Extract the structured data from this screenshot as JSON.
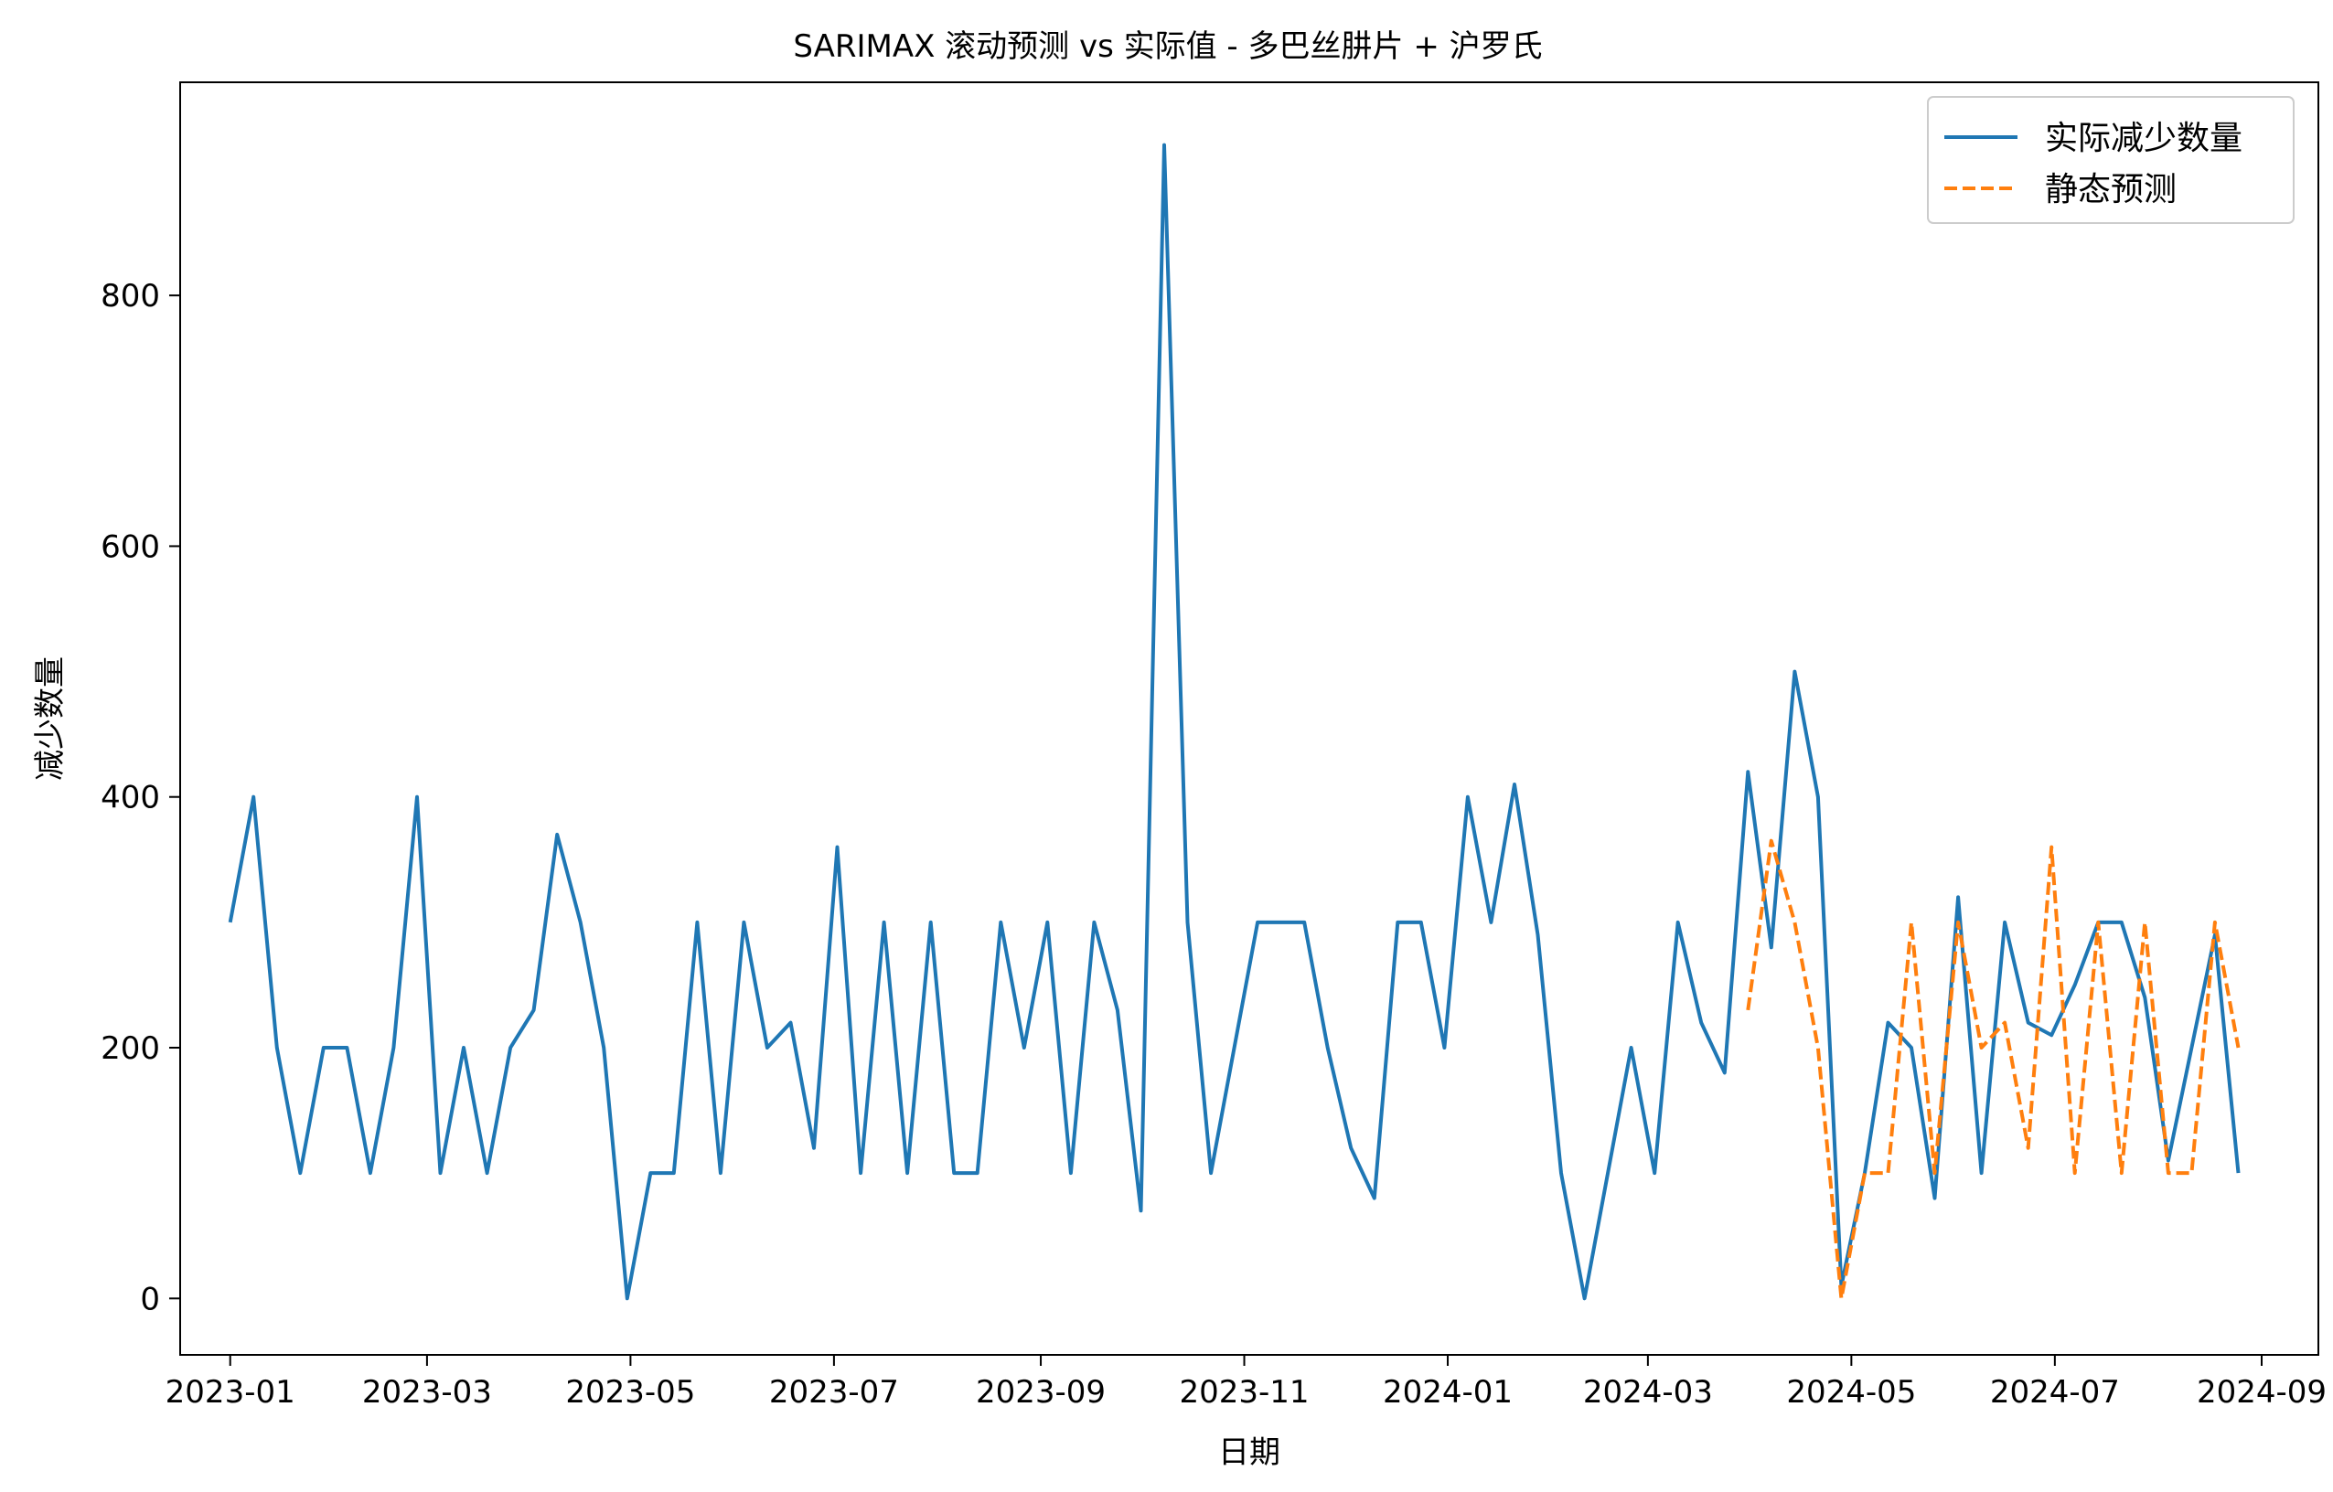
{
  "chart_data": {
    "type": "line",
    "title": "SARIMAX 滚动预测 vs 实际值 - 多巴丝肼片 + 沪罗氏",
    "xlabel": "日期",
    "ylabel": "减少数量",
    "xlim": [
      "2022-12-17",
      "2024-09-18"
    ],
    "ylim": [
      -45,
      970
    ],
    "x_ticks": [
      "2023-01",
      "2023-03",
      "2023-05",
      "2023-07",
      "2023-09",
      "2023-11",
      "2024-01",
      "2024-03",
      "2024-05",
      "2024-07",
      "2024-09"
    ],
    "y_ticks": [
      0,
      200,
      400,
      600,
      800
    ],
    "legend_position": "top-right",
    "series": [
      {
        "name": "实际减少数量",
        "color": "#1f77b4",
        "style": "solid",
        "start": "2023-01-01",
        "interval_days": 7,
        "values": [
          300,
          400,
          200,
          100,
          200,
          200,
          100,
          200,
          400,
          100,
          200,
          100,
          200,
          230,
          370,
          300,
          200,
          0,
          100,
          100,
          300,
          100,
          300,
          200,
          220,
          120,
          360,
          100,
          300,
          100,
          300,
          100,
          100,
          300,
          200,
          300,
          100,
          300,
          230,
          70,
          920,
          300,
          100,
          200,
          300,
          300,
          300,
          200,
          120,
          80,
          300,
          300,
          200,
          400,
          300,
          410,
          290,
          100,
          0,
          100,
          200,
          100,
          300,
          220,
          180,
          420,
          280,
          500,
          400,
          10,
          100,
          220,
          200,
          80,
          320,
          100,
          300,
          220,
          210,
          250,
          300,
          300,
          240,
          110,
          200,
          290,
          100
        ]
      },
      {
        "name": "静态预测",
        "color": "#ff7f0e",
        "style": "dashed",
        "start": "2024-03-31",
        "interval_days": 7,
        "values": [
          230,
          365,
          300,
          200,
          0,
          100,
          100,
          300,
          100,
          300,
          200,
          220,
          120,
          360,
          100,
          300,
          100,
          300,
          100,
          100,
          300,
          200
        ]
      }
    ]
  }
}
